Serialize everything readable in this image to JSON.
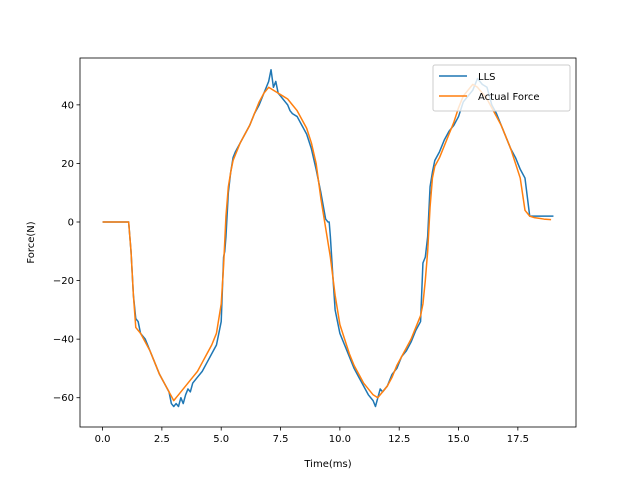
{
  "chart_data": {
    "type": "line",
    "title": "",
    "xlabel": "Time(ms)",
    "ylabel": "Force(N)",
    "xlim": [
      -0.95,
      19.95
    ],
    "ylim": [
      -70,
      56
    ],
    "xticks": [
      0.0,
      2.5,
      5.0,
      7.5,
      10.0,
      12.5,
      15.0,
      17.5
    ],
    "xtick_labels": [
      "0.0",
      "2.5",
      "5.0",
      "7.5",
      "10.0",
      "12.5",
      "15.0",
      "17.5"
    ],
    "yticks": [
      -60,
      -40,
      -20,
      0,
      20,
      40
    ],
    "ytick_labels": [
      "−60",
      "−40",
      "−20",
      "0",
      "20",
      "40"
    ],
    "grid": false,
    "legend_position": "top-right",
    "series": [
      {
        "name": "LLS",
        "color": "#1f77b4",
        "x": [
          0.0,
          0.5,
          1.0,
          1.1,
          1.2,
          1.3,
          1.4,
          1.5,
          1.6,
          1.8,
          2.0,
          2.2,
          2.4,
          2.6,
          2.8,
          2.9,
          3.0,
          3.1,
          3.2,
          3.3,
          3.4,
          3.5,
          3.6,
          3.7,
          3.8,
          4.0,
          4.2,
          4.4,
          4.6,
          4.8,
          5.0,
          5.1,
          5.15,
          5.2,
          5.3,
          5.4,
          5.5,
          5.6,
          5.8,
          6.0,
          6.2,
          6.4,
          6.6,
          6.8,
          7.0,
          7.1,
          7.2,
          7.3,
          7.4,
          7.5,
          7.6,
          7.7,
          7.8,
          7.9,
          8.0,
          8.2,
          8.4,
          8.6,
          8.8,
          9.0,
          9.2,
          9.4,
          9.5,
          9.55,
          9.6,
          9.7,
          9.8,
          10.0,
          10.2,
          10.4,
          10.6,
          10.8,
          11.0,
          11.2,
          11.4,
          11.5,
          11.6,
          11.7,
          11.8,
          12.0,
          12.2,
          12.4,
          12.6,
          12.8,
          13.0,
          13.2,
          13.4,
          13.5,
          13.6,
          13.7,
          13.8,
          13.9,
          14.0,
          14.2,
          14.4,
          14.6,
          14.8,
          15.0,
          15.2,
          15.4,
          15.6,
          15.8,
          16.0,
          16.2,
          16.4,
          16.6,
          16.8,
          17.0,
          17.2,
          17.4,
          17.6,
          17.8,
          18.0,
          18.1,
          18.2,
          18.3,
          18.6,
          19.0
        ],
        "y": [
          0,
          0,
          0,
          0,
          -10,
          -25,
          -33,
          -34,
          -38,
          -40,
          -44,
          -48,
          -52,
          -55,
          -58,
          -62,
          -63,
          -62,
          -63,
          -60,
          -62,
          -59,
          -57,
          -58,
          -55,
          -53,
          -51,
          -48,
          -45,
          -42,
          -34,
          -12,
          -10,
          -5,
          10,
          17,
          22,
          24,
          27,
          30,
          33,
          37,
          40,
          44,
          48,
          52,
          46,
          48,
          44,
          43,
          42,
          41,
          40,
          38,
          37,
          36,
          33,
          30,
          25,
          18,
          10,
          1,
          0,
          0,
          -5,
          -18,
          -30,
          -38,
          -42,
          -46,
          -50,
          -53,
          -56,
          -59,
          -61,
          -63,
          -60,
          -57,
          -58,
          -56,
          -52,
          -50,
          -46,
          -44,
          -41,
          -37,
          -34,
          -14,
          -12,
          -5,
          12,
          17,
          21,
          24,
          28,
          31,
          33,
          36,
          41,
          43,
          45,
          49,
          47,
          46,
          40,
          37,
          33,
          29,
          25,
          22,
          18,
          15,
          2,
          2,
          2,
          2,
          2,
          2
        ]
      },
      {
        "name": "Actual Force",
        "color": "#ff7f0e",
        "x": [
          0.0,
          0.5,
          1.0,
          1.1,
          1.2,
          1.3,
          1.4,
          1.5,
          1.6,
          1.8,
          2.0,
          2.2,
          2.4,
          2.6,
          2.8,
          3.0,
          3.1,
          3.2,
          3.4,
          3.6,
          3.8,
          4.0,
          4.2,
          4.4,
          4.6,
          4.8,
          5.0,
          5.1,
          5.2,
          5.3,
          5.4,
          5.5,
          5.6,
          5.8,
          6.0,
          6.2,
          6.4,
          6.6,
          6.8,
          7.0,
          7.2,
          7.4,
          7.6,
          7.8,
          8.0,
          8.2,
          8.4,
          8.6,
          8.8,
          9.0,
          9.2,
          9.4,
          9.6,
          9.8,
          10.0,
          10.2,
          10.4,
          10.6,
          10.8,
          11.0,
          11.2,
          11.4,
          11.6,
          11.8,
          12.0,
          12.2,
          12.4,
          12.6,
          12.8,
          13.0,
          13.2,
          13.4,
          13.5,
          13.6,
          13.7,
          13.8,
          13.9,
          14.0,
          14.2,
          14.4,
          14.6,
          14.8,
          15.0,
          15.2,
          15.4,
          15.6,
          15.8,
          16.0,
          16.2,
          16.4,
          16.6,
          16.8,
          17.0,
          17.2,
          17.4,
          17.6,
          17.8,
          18.0,
          18.2,
          18.6,
          18.9
        ],
        "y": [
          0,
          0,
          0,
          0,
          -10,
          -25,
          -36,
          -37,
          -38,
          -41,
          -44,
          -48,
          -52,
          -55,
          -58,
          -61,
          -60,
          -59,
          -57,
          -55,
          -53,
          -51,
          -48,
          -45,
          -42,
          -38,
          -28,
          -15,
          2,
          12,
          17,
          21,
          23,
          27,
          30,
          33,
          37,
          41,
          44,
          46,
          45,
          44,
          43,
          42,
          40,
          38,
          35,
          32,
          27,
          20,
          8,
          -2,
          -12,
          -25,
          -35,
          -40,
          -45,
          -49,
          -52,
          -55,
          -57,
          -59,
          -60,
          -58,
          -56,
          -53,
          -49,
          -46,
          -43,
          -40,
          -36,
          -32,
          -28,
          -20,
          -10,
          5,
          15,
          19,
          22,
          26,
          30,
          34,
          39,
          43,
          45,
          47,
          46,
          44,
          42,
          39,
          36,
          33,
          29,
          25,
          20,
          15,
          4,
          2,
          1.5,
          1,
          0.8
        ]
      }
    ]
  }
}
